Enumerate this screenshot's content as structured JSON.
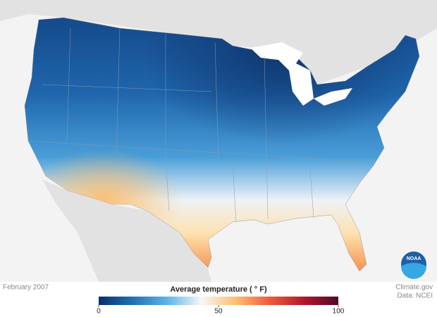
{
  "map": {
    "date": "February 2007",
    "logo": "NOAA"
  },
  "legend": {
    "title": "Average temperature ( ° F)",
    "range": [
      0,
      100
    ],
    "ticks": [
      0,
      50,
      100
    ],
    "colors": [
      "#08306b",
      "#2171b5",
      "#5bb5e8",
      "#f7f7f7",
      "#fdbf6f",
      "#ef5a3c",
      "#b2182b",
      "#4d0a2a"
    ]
  },
  "footer": {
    "source": "Climate.gov",
    "data": "Data: NCEI"
  }
}
